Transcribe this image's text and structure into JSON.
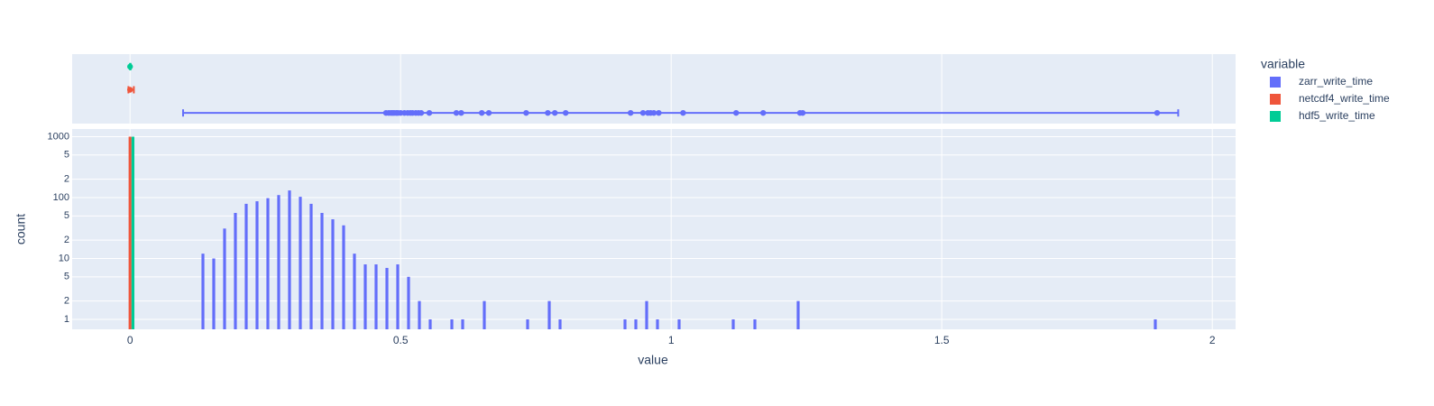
{
  "chart_data": {
    "type": "histogram",
    "xlabel": "value",
    "ylabel": "count",
    "legend_title": "variable",
    "legend": "right",
    "log_y": true,
    "grid": true,
    "xlim": [
      -0.107,
      2.043
    ],
    "xticks": [
      0,
      0.5,
      1,
      1.5,
      2
    ],
    "ylim": [
      0.687,
      1336
    ],
    "yticks": [
      1,
      {
        "value": 2,
        "label": "2"
      },
      {
        "value": 5,
        "label": "5"
      },
      10,
      {
        "value": 20,
        "label": "2"
      },
      {
        "value": 50,
        "label": "5"
      },
      100,
      {
        "value": 200,
        "label": "2"
      },
      {
        "value": 500,
        "label": "5"
      },
      1000
    ],
    "bins": [
      -0.01,
      0.01,
      0.03,
      0.05,
      0.07,
      0.09,
      0.11,
      0.13,
      0.15,
      0.17,
      0.19,
      0.21,
      0.23,
      0.25,
      0.27,
      0.29,
      0.31,
      0.33,
      0.35,
      0.37,
      0.39,
      0.41,
      0.43,
      0.45,
      0.47,
      0.49,
      0.51,
      0.53,
      0.55,
      0.57,
      0.59,
      0.61,
      0.63,
      0.65,
      0.67,
      0.69,
      0.71,
      0.73,
      0.75,
      0.77,
      0.79,
      0.81,
      0.83,
      0.85,
      0.87,
      0.89,
      0.91,
      0.93,
      0.95,
      0.97,
      0.99,
      1.01,
      1.03,
      1.05,
      1.07,
      1.09,
      1.11,
      1.13,
      1.15,
      1.17,
      1.19,
      1.21,
      1.23,
      1.25,
      1.27,
      1.29,
      1.31,
      1.33,
      1.35,
      1.37,
      1.39,
      1.41,
      1.43,
      1.45,
      1.47,
      1.49,
      1.51,
      1.53,
      1.55,
      1.57,
      1.59,
      1.61,
      1.63,
      1.65,
      1.67,
      1.69,
      1.71,
      1.73,
      1.75,
      1.77,
      1.79,
      1.81,
      1.83,
      1.85,
      1.87,
      1.89,
      1.91
    ],
    "series": [
      {
        "name": "zarr_write_time",
        "color": "#636efa",
        "values": [
          0,
          0,
          0,
          0,
          0,
          0,
          0,
          12,
          10,
          31,
          56,
          79,
          87,
          98,
          110,
          131,
          103,
          79,
          56,
          44,
          35,
          12,
          8,
          8,
          7,
          8,
          5,
          2,
          1,
          0,
          1,
          1,
          0,
          2,
          0,
          0,
          0,
          1,
          0,
          2,
          1,
          0,
          0,
          0,
          0,
          0,
          1,
          1,
          2,
          1,
          0,
          1,
          0,
          0,
          0,
          0,
          1,
          0,
          1,
          0,
          0,
          0,
          2,
          0,
          0,
          0,
          0,
          0,
          0,
          0,
          0,
          0,
          0,
          0,
          0,
          0,
          0,
          0,
          0,
          0,
          0,
          0,
          0,
          0,
          0,
          0,
          0,
          0,
          0,
          0,
          0,
          0,
          0,
          0,
          0,
          1
        ]
      },
      {
        "name": "netcdf4_write_time",
        "color": "#EF553B",
        "values": [
          1000,
          0,
          0,
          0,
          0,
          0,
          0,
          0,
          0,
          0,
          0,
          0,
          0,
          0,
          0,
          0,
          0,
          0,
          0,
          0,
          0,
          0,
          0,
          0,
          0,
          0,
          0,
          0,
          0,
          0,
          0,
          0,
          0,
          0,
          0,
          0,
          0,
          0,
          0,
          0,
          0,
          0,
          0,
          0,
          0,
          0,
          0,
          0,
          0,
          0,
          0,
          0,
          0,
          0,
          0,
          0,
          0,
          0,
          0,
          0,
          0,
          0,
          0,
          0,
          0,
          0,
          0,
          0,
          0,
          0,
          0,
          0,
          0,
          0,
          0,
          0,
          0,
          0,
          0,
          0,
          0,
          0,
          0,
          0,
          0,
          0,
          0,
          0,
          0,
          0,
          0,
          0,
          0,
          0,
          0,
          0
        ]
      },
      {
        "name": "hdf5_write_time",
        "color": "#00cc96",
        "values": [
          1000,
          0,
          0,
          0,
          0,
          0,
          0,
          0,
          0,
          0,
          0,
          0,
          0,
          0,
          0,
          0,
          0,
          0,
          0,
          0,
          0,
          0,
          0,
          0,
          0,
          0,
          0,
          0,
          0,
          0,
          0,
          0,
          0,
          0,
          0,
          0,
          0,
          0,
          0,
          0,
          0,
          0,
          0,
          0,
          0,
          0,
          0,
          0,
          0,
          0,
          0,
          0,
          0,
          0,
          0,
          0,
          0,
          0,
          0,
          0,
          0,
          0,
          0,
          0,
          0,
          0,
          0,
          0,
          0,
          0,
          0,
          0,
          0,
          0,
          0,
          0,
          0,
          0,
          0,
          0,
          0,
          0,
          0,
          0,
          0,
          0,
          0,
          0,
          0,
          0,
          0,
          0,
          0,
          0,
          0,
          0
        ]
      }
    ],
    "marginal": {
      "type": "box",
      "series": [
        {
          "min": 0.098,
          "max": 1.937,
          "points": [
            0.473,
            0.478,
            0.482,
            0.485,
            0.488,
            0.492,
            0.495,
            0.5,
            0.507,
            0.513,
            0.518,
            0.522,
            0.528,
            0.533,
            0.538,
            0.553,
            0.603,
            0.612,
            0.65,
            0.663,
            0.732,
            0.772,
            0.785,
            0.805,
            0.925,
            0.948,
            0.957,
            0.962,
            0.968,
            0.977,
            1.022,
            1.12,
            1.17,
            1.238,
            1.243,
            1.898
          ]
        },
        {
          "min": -0.003,
          "max": 0.007,
          "points": [
            0
          ]
        },
        {
          "min": 0,
          "max": 0.001,
          "points": [
            0
          ]
        }
      ]
    }
  }
}
